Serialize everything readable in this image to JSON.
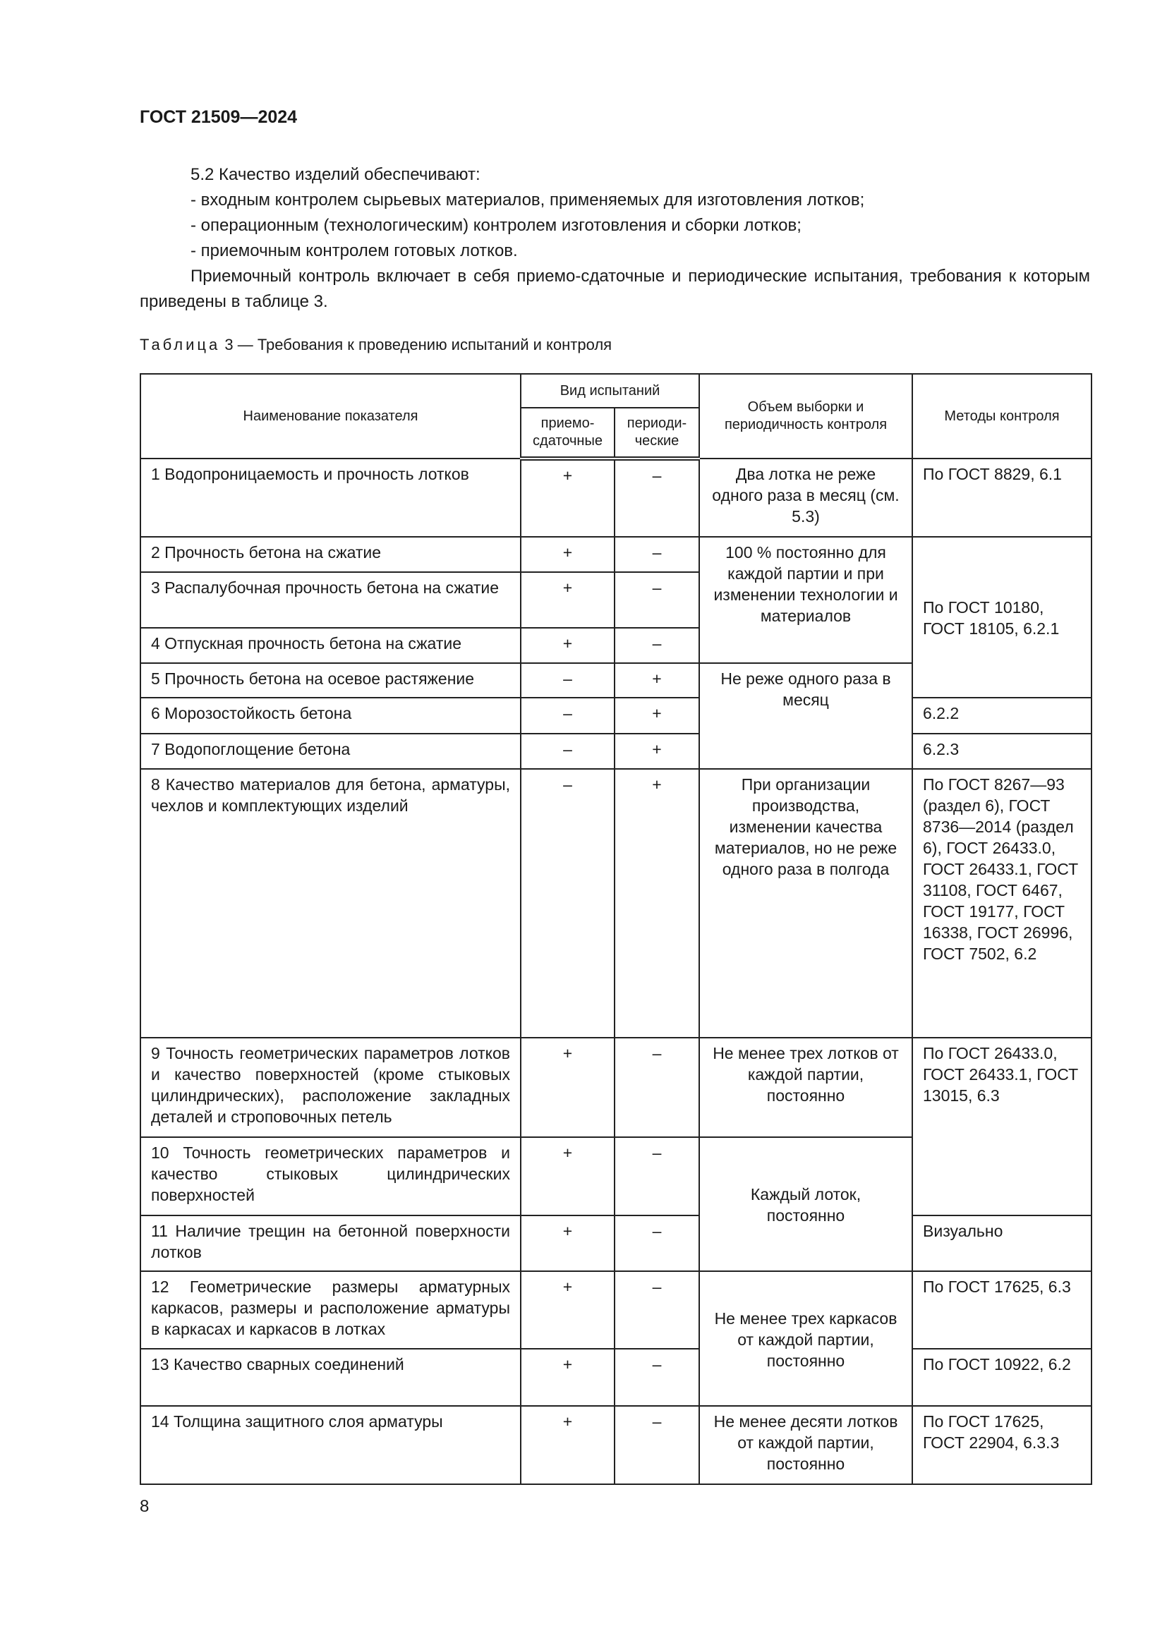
{
  "header": "ГОСТ 21509—2024",
  "paragraphs": [
    "5.2 Качество изделий обеспечивают:",
    "- входным контролем сырьевых материалов, применяемых для изготовления лотков;",
    "- операционным (технологическим) контролем изготовления и сборки лотков;",
    "- приемочным контролем готовых лотков.",
    "Приемочный контроль включает в себя приемо-сдаточные и периодические испытания, требования к которым приведены в таблице 3."
  ],
  "caption": {
    "prefix": "Таблица",
    "text": " 3 — Требования к проведению испытаний и контроля"
  },
  "table": {
    "headers": {
      "name": "Наименование показателя",
      "kind": "Вид испытаний",
      "acc": "приемо-сдаточные",
      "per": "периоди-ческие",
      "vol": "Объем выборки и периодичность контроля",
      "meth": "Методы контроля"
    },
    "rows": [
      {
        "name": "1 Водопроницаемость и прочность лотков",
        "acc": "+",
        "per": "–",
        "vol": "Два лотка не реже одного раза в месяц (см. 5.3)",
        "meth": "По ГОСТ 8829, 6.1"
      },
      {
        "name": "2 Прочность бетона на сжатие",
        "acc": "+",
        "per": "–",
        "vol": "100 % постоянно для каждой партии и при изменении технологии и материалов",
        "meth": "По ГОСТ 10180, ГОСТ 18105, 6.2.1"
      },
      {
        "name": "3 Распалубочная прочность бетона на сжатие",
        "acc": "+",
        "per": "–"
      },
      {
        "name": "4 Отпускная прочность бетона на сжатие",
        "acc": "+",
        "per": "–"
      },
      {
        "name": "5 Прочность бетона на осевое растяжение",
        "acc": "–",
        "per": "+",
        "vol": "Не реже одного раза в месяц"
      },
      {
        "name": "6 Морозостойкость бетона",
        "acc": "–",
        "per": "+",
        "meth": "6.2.2"
      },
      {
        "name": "7 Водопоглощение бетона",
        "acc": "–",
        "per": "+",
        "meth": "6.2.3"
      },
      {
        "name": "8 Качество материалов для бетона, арматуры, чехлов и комплектующих изделий",
        "acc": "–",
        "per": "+",
        "vol": "При организации производства, изменении качества материалов, но не реже одного раза в полгода",
        "meth": "По ГОСТ 8267—93 (раздел 6), ГОСТ 8736—2014 (раздел 6), ГОСТ 26433.0, ГОСТ 26433.1, ГОСТ 31108, ГОСТ 6467, ГОСТ 19177, ГОСТ 16338, ГОСТ 26996, ГОСТ 7502, 6.2"
      },
      {
        "name": "9 Точность геометрических параметров лотков и качество поверхностей (кроме стыковых цилиндрических), расположение закладных деталей и строповочных петель",
        "acc": "+",
        "per": "–",
        "vol": "Не менее трех лотков от каждой партии, постоянно",
        "meth": "По ГОСТ 26433.0, ГОСТ 26433.1, ГОСТ 13015, 6.3"
      },
      {
        "name": "10 Точность геометрических параметров и качество стыковых цилиндрических поверхностей",
        "acc": "+",
        "per": "–",
        "vol": "Каждый лоток, постоянно"
      },
      {
        "name": "11 Наличие трещин на бетонной поверхности лотков",
        "acc": "+",
        "per": "–",
        "meth": "Визуально"
      },
      {
        "name": "12 Геометрические размеры арматурных каркасов, размеры и расположение арматуры в каркасах и каркасов в лотках",
        "acc": "+",
        "per": "–",
        "vol": "Не менее трех каркасов от каждой партии, постоянно",
        "meth": "По ГОСТ 17625, 6.3"
      },
      {
        "name": "13 Качество сварных соединений",
        "acc": "+",
        "per": "–",
        "meth": "По ГОСТ 10922, 6.2"
      },
      {
        "name": "14 Толщина защитного слоя арматуры",
        "acc": "+",
        "per": "–",
        "vol": "Не менее десяти лотков от каждой партии, постоянно",
        "meth": "По ГОСТ 17625, ГОСТ 22904, 6.3.3"
      }
    ]
  },
  "page_number": "8"
}
